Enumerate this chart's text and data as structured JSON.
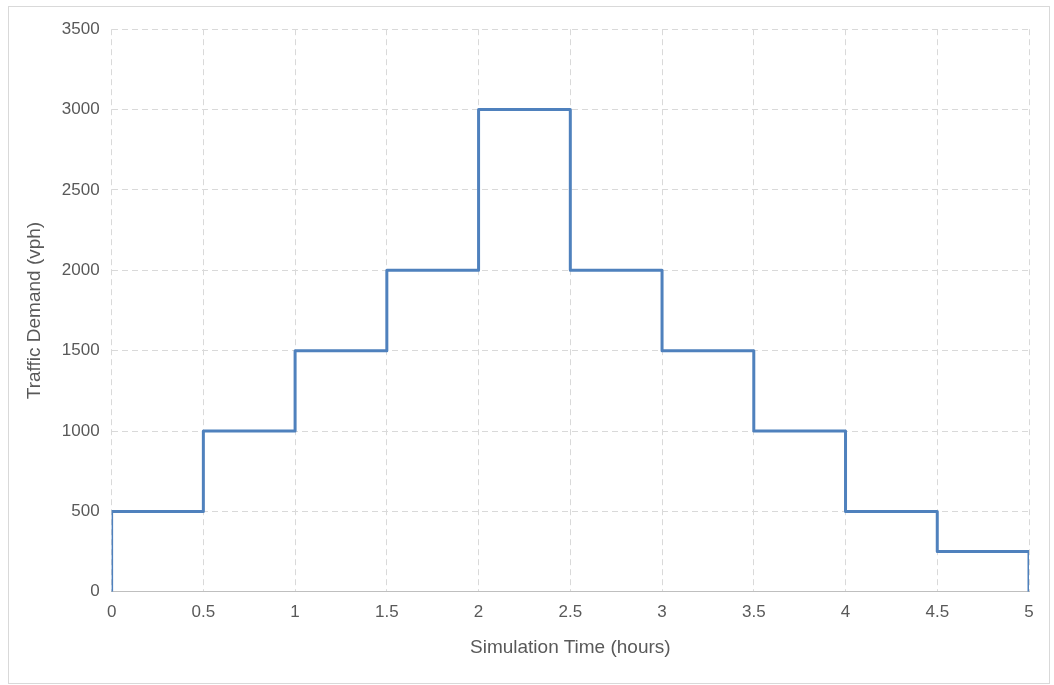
{
  "chart_data": {
    "type": "step",
    "xlabel": "Simulation Time (hours)",
    "ylabel": "Traffic Demand (vph)",
    "x": [
      0,
      0,
      0.5,
      1,
      1.5,
      2,
      2.5,
      3,
      3.5,
      4,
      4.5,
      5,
      5
    ],
    "series": [
      {
        "color": "#4f81bd",
        "values": [
          0,
          500,
          1000,
          1500,
          2000,
          3000,
          2000,
          1500,
          1000,
          500,
          250,
          250,
          0
        ]
      }
    ],
    "xlim": [
      0,
      5
    ],
    "xticks": [
      0,
      0.5,
      1,
      1.5,
      2,
      2.5,
      3,
      3.5,
      4,
      4.5,
      5
    ],
    "ylim": [
      0,
      3500
    ],
    "yticks": [
      0,
      500,
      1000,
      1500,
      2000,
      2500,
      3000,
      3500
    ],
    "grid": true,
    "legend": false,
    "marker": "none",
    "line_style": "solid"
  }
}
